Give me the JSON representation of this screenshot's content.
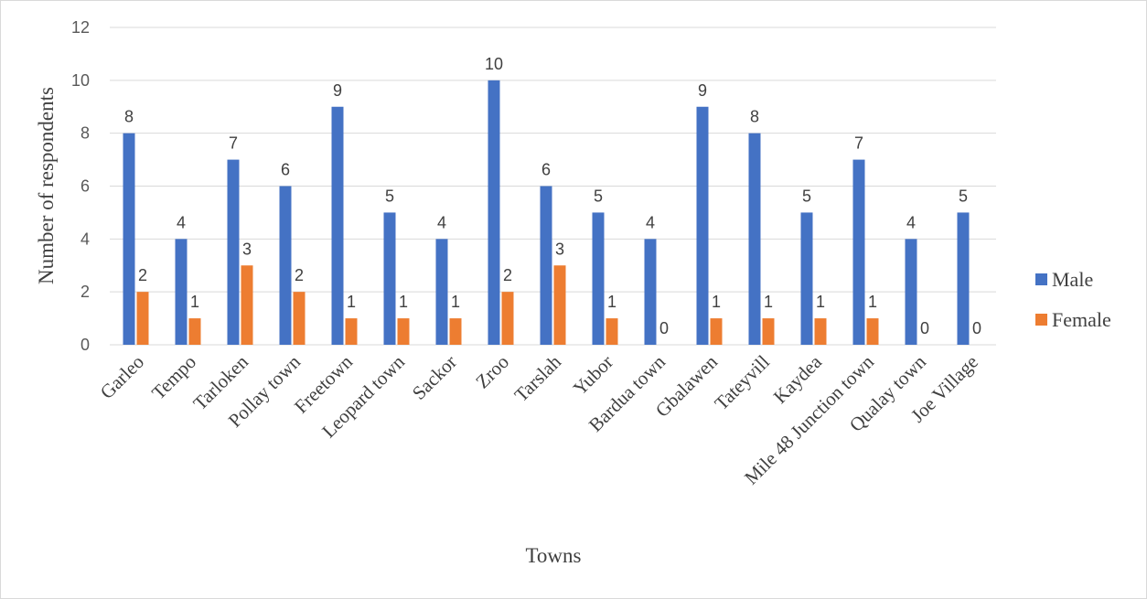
{
  "chart_data": {
    "type": "bar",
    "title": "",
    "xlabel": "Towns",
    "ylabel": "Number of respondents",
    "ylim": [
      0,
      12
    ],
    "yticks": [
      0,
      2,
      4,
      6,
      8,
      10,
      12
    ],
    "grid": true,
    "legend_position": "right",
    "categories": [
      "Garleo",
      "Tempo",
      "Tarloken",
      "Pollay town",
      "Freetown",
      "Leopard town",
      "Sackor",
      "Zroo",
      "Tarslah",
      "Yubor",
      "Bardua town",
      "Gbalawen",
      "Tateyvill",
      "Kaydea",
      "Mile 48 Junction town",
      "Qualay town",
      "Joe Village"
    ],
    "series": [
      {
        "name": "Male",
        "color": "#4472C4",
        "values": [
          8,
          4,
          7,
          6,
          9,
          5,
          4,
          10,
          6,
          5,
          4,
          9,
          8,
          5,
          7,
          4,
          5
        ]
      },
      {
        "name": "Female",
        "color": "#ED7D31",
        "values": [
          2,
          1,
          3,
          2,
          1,
          1,
          1,
          2,
          3,
          1,
          0,
          1,
          1,
          1,
          1,
          0,
          0
        ]
      }
    ]
  }
}
